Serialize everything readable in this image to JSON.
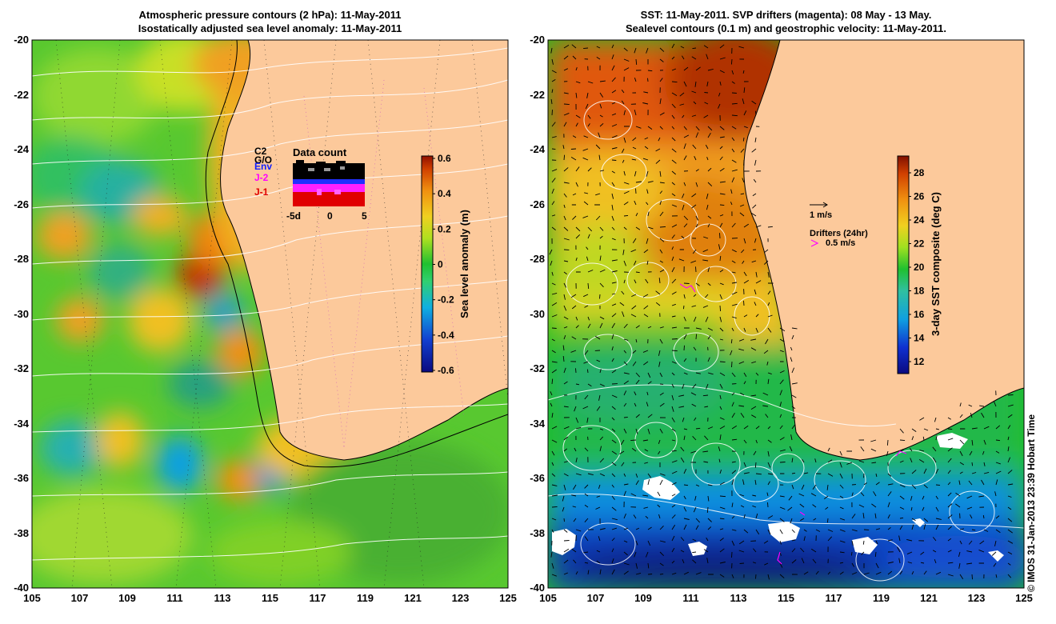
{
  "left_panel": {
    "title_line1": "Atmospheric pressure contours (2 hPa): 11-May-2011",
    "title_line2": "Isostatically adjusted sea level anomaly: 11-May-2011",
    "colorbar_label": "Sea level anomaly (m)",
    "colorbar_ticks": [
      "0.6",
      "0.4",
      "0.2",
      "0",
      "-0.2",
      "-0.4",
      "-0.6"
    ],
    "data_count": {
      "title": "Data count",
      "legend": [
        {
          "label": "C2",
          "color": "#000000"
        },
        {
          "label": "G/O",
          "color": "#000000"
        },
        {
          "label": "Env",
          "color": "#1020ff"
        },
        {
          "label": "J-2",
          "color": "#ff00ff"
        },
        {
          "label": "J-1",
          "color": "#e00000"
        }
      ],
      "x_ticks": [
        "-5d",
        "0",
        "5"
      ]
    }
  },
  "right_panel": {
    "title_line1": "SST: 11-May-2011. SVP drifters (magenta): 08 May - 13 May.",
    "title_line2": "Sealevel contours (0.1 m) and geostrophic velocity: 11-May-2011.",
    "colorbar_label": "3-day SST composite (deg C)",
    "colorbar_ticks": [
      "28",
      "26",
      "24",
      "22",
      "20",
      "18",
      "16",
      "14",
      "12"
    ],
    "velocity_scale_label": "1 m/s",
    "drifter_title": "Drifters (24hr)",
    "drifter_scale_label": "0.5 m/s"
  },
  "y_ticks": [
    "-20",
    "-22",
    "-24",
    "-26",
    "-28",
    "-30",
    "-32",
    "-34",
    "-36",
    "-38",
    "-40"
  ],
  "x_ticks": [
    "105",
    "107",
    "109",
    "111",
    "113",
    "115",
    "117",
    "119",
    "121",
    "123",
    "125"
  ],
  "credit": "© IMOS 31-Jan-2013 23:39 Hobart Time",
  "colors": {
    "land": "#fcc99b",
    "coast": "#000000",
    "contour": "#ffffff",
    "drifter": "#ff00ff"
  }
}
